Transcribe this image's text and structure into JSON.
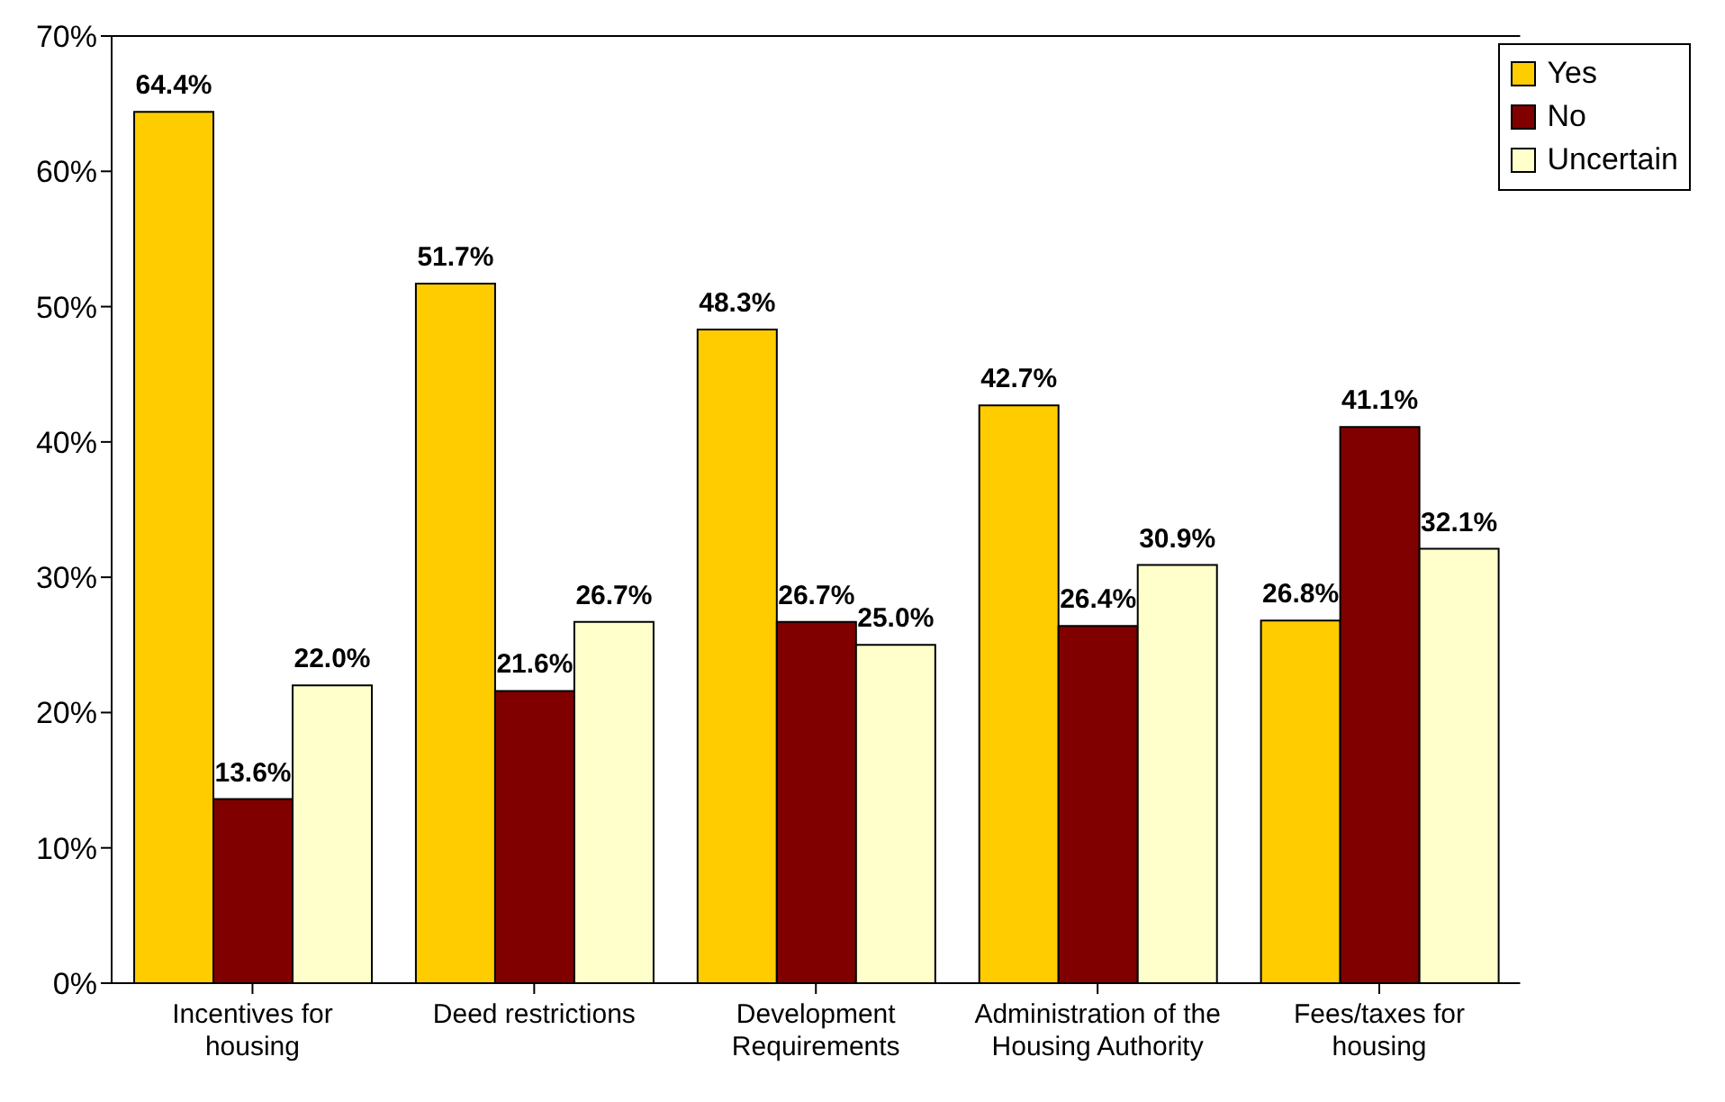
{
  "chart_data": {
    "type": "bar",
    "categories": [
      "Incentives for housing",
      "Deed restrictions",
      "Development Requirements",
      "Administration of the Housing Authority",
      "Fees/taxes for housing"
    ],
    "series": [
      {
        "name": "Yes",
        "color": "#ffcc00",
        "values": [
          64.4,
          51.7,
          48.3,
          42.7,
          26.8
        ],
        "value_labels": [
          "64.4%",
          "51.7%",
          "48.3%",
          "42.7%",
          "26.8%"
        ]
      },
      {
        "name": "No",
        "color": "#800000",
        "values": [
          13.6,
          21.6,
          26.7,
          26.4,
          41.1
        ],
        "value_labels": [
          "13.6%",
          "21.6%",
          "26.7%",
          "26.4%",
          "41.1%"
        ]
      },
      {
        "name": "Uncertain",
        "color": "#ffffcc",
        "values": [
          22.0,
          26.7,
          25.0,
          30.9,
          32.1
        ],
        "value_labels": [
          "22.0%",
          "26.7%",
          "25.0%",
          "30.9%",
          "32.1%"
        ]
      }
    ],
    "ylim": [
      0,
      70
    ],
    "yticks": [
      {
        "value": 0,
        "label": "0%"
      },
      {
        "value": 10,
        "label": "10%"
      },
      {
        "value": 20,
        "label": "20%"
      },
      {
        "value": 30,
        "label": "30%"
      },
      {
        "value": 40,
        "label": "40%"
      },
      {
        "value": 50,
        "label": "50%"
      },
      {
        "value": 60,
        "label": "60%"
      },
      {
        "value": 70,
        "label": "70%"
      }
    ],
    "grid": false,
    "legend": "top right"
  }
}
